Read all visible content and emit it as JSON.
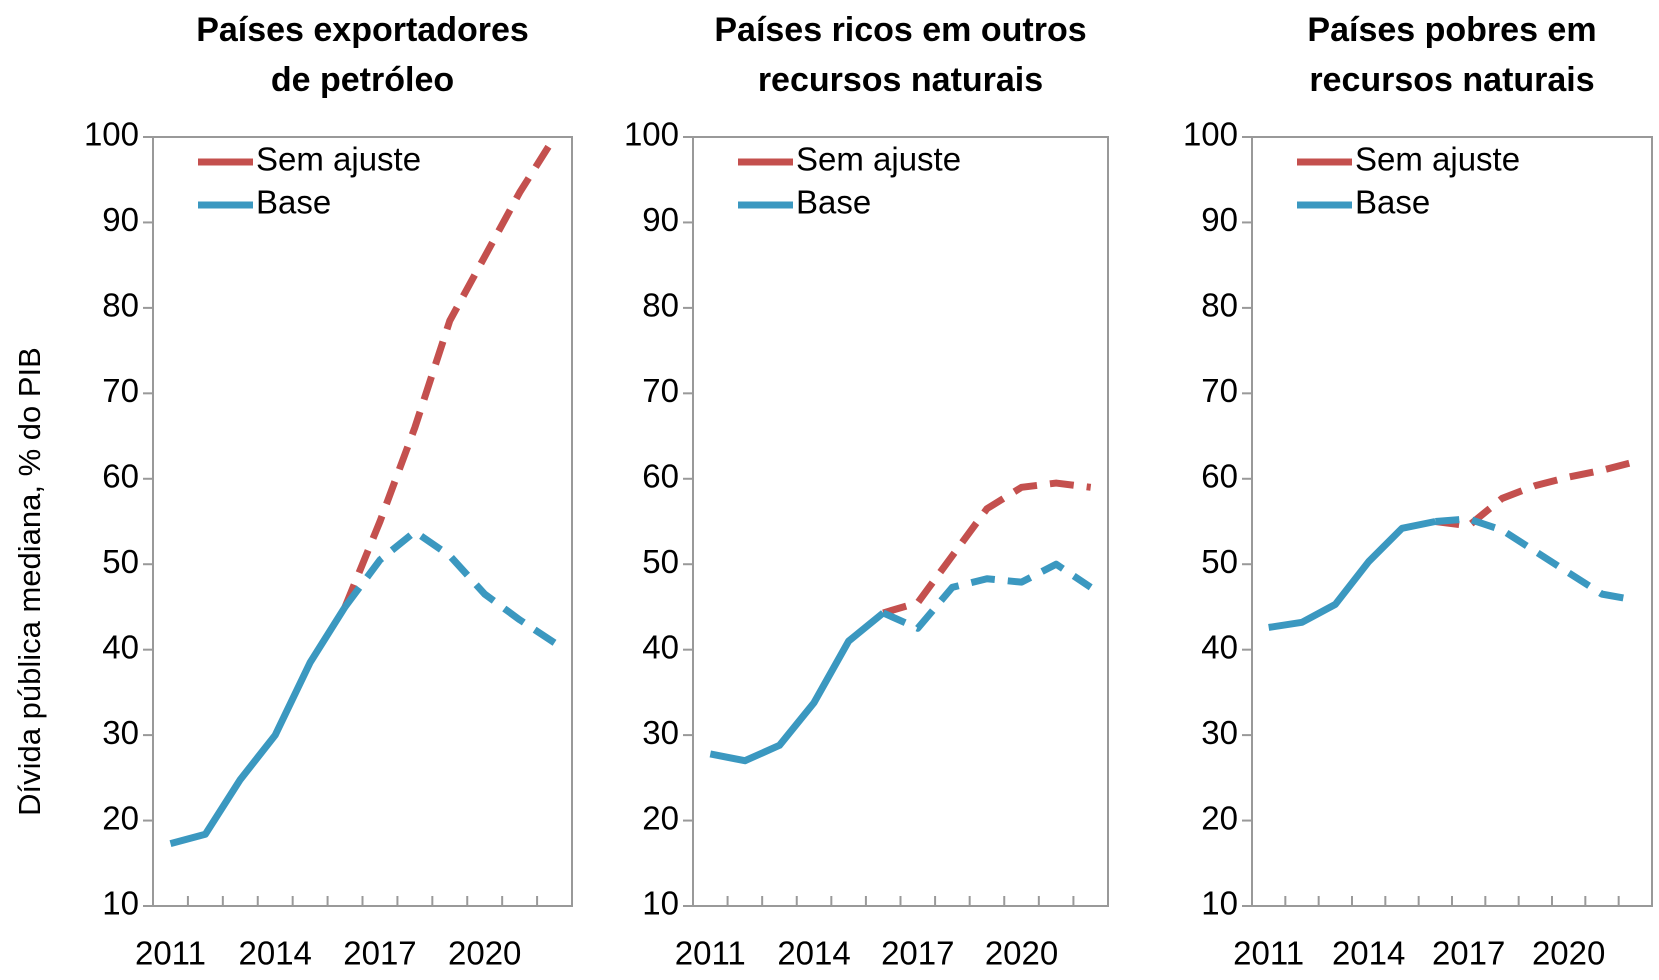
{
  "chart_data": [
    {
      "type": "line",
      "title": [
        "Países exportadores",
        "de petróleo"
      ],
      "ylabel": "Dívida pública mediana, % do PIB",
      "x": [
        2011,
        2012,
        2013,
        2014,
        2015,
        2016,
        2017,
        2018,
        2019,
        2020,
        2021,
        2022
      ],
      "xlim": [
        2010.5,
        2022.5
      ],
      "xticks": [
        2011,
        2014,
        2017,
        2020
      ],
      "ylim": [
        10,
        100
      ],
      "yticks": [
        10,
        20,
        30,
        40,
        50,
        60,
        70,
        80,
        90,
        100
      ],
      "dash_from": 2016,
      "legend": "upper left",
      "series": [
        {
          "name": "Sem ajuste",
          "color": "#c4504e",
          "values": [
            null,
            null,
            null,
            null,
            null,
            45,
            55,
            66,
            78.5,
            86,
            93.5,
            100
          ]
        },
        {
          "name": "Base",
          "color": "#3b98c0",
          "values": [
            17.3,
            18.4,
            24.8,
            30,
            38.5,
            45,
            50.5,
            53.8,
            51,
            46.5,
            43.5,
            40.8
          ]
        }
      ]
    },
    {
      "type": "line",
      "title": [
        "Países ricos em outros",
        "recursos naturais"
      ],
      "x": [
        2011,
        2012,
        2013,
        2014,
        2015,
        2016,
        2017,
        2018,
        2019,
        2020,
        2021,
        2022
      ],
      "xlim": [
        2010.5,
        2022.5
      ],
      "xticks": [
        2011,
        2014,
        2017,
        2020
      ],
      "ylim": [
        10,
        100
      ],
      "yticks": [
        10,
        20,
        30,
        40,
        50,
        60,
        70,
        80,
        90,
        100
      ],
      "dash_from": 2016,
      "legend": "upper left",
      "series": [
        {
          "name": "Sem ajuste",
          "color": "#c4504e",
          "values": [
            null,
            null,
            null,
            null,
            null,
            44.3,
            45.5,
            51,
            56.5,
            59,
            59.5,
            59
          ]
        },
        {
          "name": "Base",
          "color": "#3b98c0",
          "values": [
            27.8,
            27,
            28.8,
            33.8,
            41,
            44.3,
            42.5,
            47.3,
            48.3,
            47.9,
            50,
            47.3
          ]
        }
      ]
    },
    {
      "type": "line",
      "title": [
        "Países pobres em",
        "recursos naturais"
      ],
      "x": [
        2011,
        2012,
        2013,
        2014,
        2015,
        2016,
        2017,
        2018,
        2019,
        2020,
        2021,
        2022
      ],
      "xlim": [
        2010.5,
        2022.5
      ],
      "xticks": [
        2011,
        2014,
        2017,
        2020
      ],
      "ylim": [
        10,
        100
      ],
      "yticks": [
        10,
        20,
        30,
        40,
        50,
        60,
        70,
        80,
        90,
        100
      ],
      "dash_from": 2016,
      "legend": "upper left",
      "series": [
        {
          "name": "Sem ajuste",
          "color": "#c4504e",
          "values": [
            null,
            null,
            null,
            null,
            null,
            55,
            54.5,
            57.7,
            59.2,
            60.2,
            61,
            62
          ]
        },
        {
          "name": "Base",
          "color": "#3b98c0",
          "values": [
            42.6,
            43.2,
            45.3,
            50.3,
            54.2,
            55,
            55.3,
            54,
            51.5,
            49,
            46.5,
            45.8
          ]
        }
      ]
    }
  ]
}
